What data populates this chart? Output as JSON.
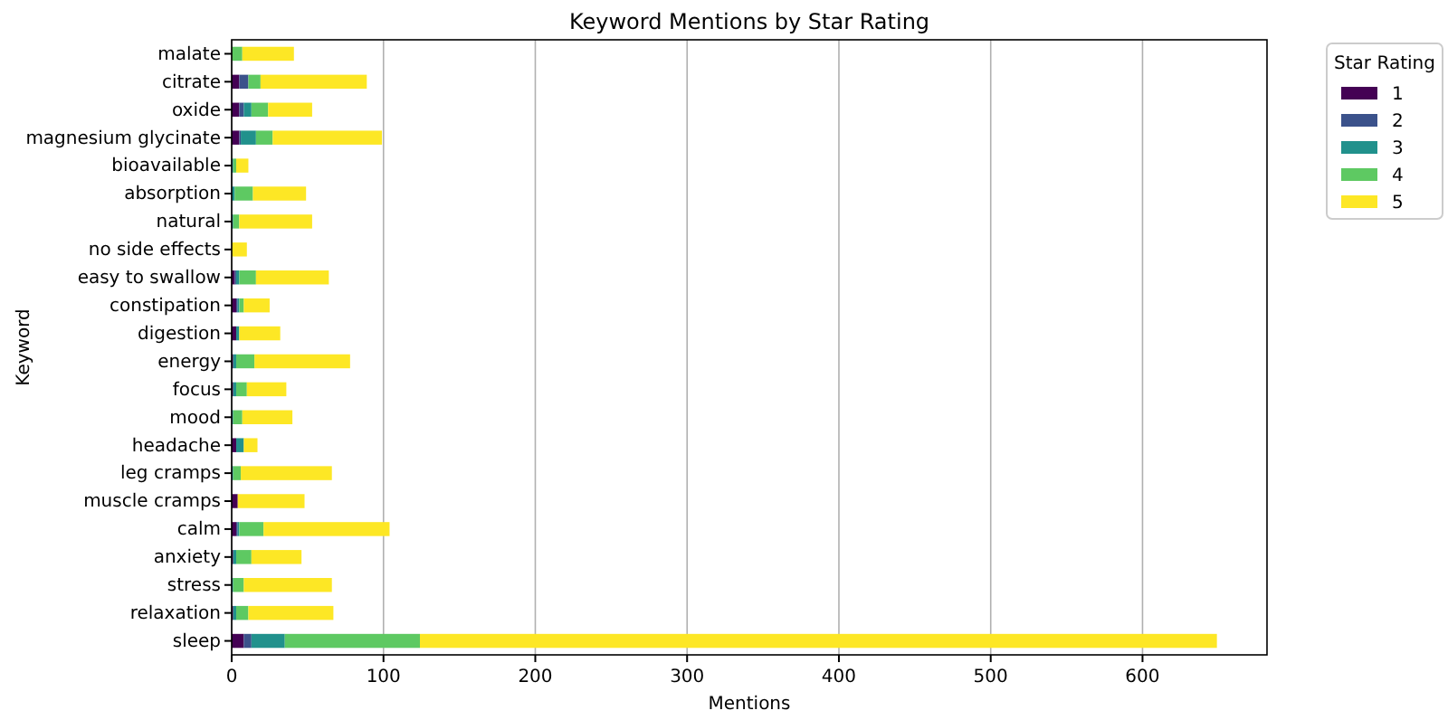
{
  "chart_data": {
    "type": "bar",
    "title": "Keyword Mentions by Star Rating",
    "xlabel": "Mentions",
    "ylabel": "Keyword",
    "legend_title": "Star Rating",
    "orientation": "horizontal",
    "stacked": true,
    "grid": "x",
    "legend": "top right",
    "categories": [
      "malate",
      "citrate",
      "oxide",
      "magnesium glycinate",
      "bioavailable",
      "absorption",
      "natural",
      "no side effects",
      "easy to swallow",
      "constipation",
      "digestion",
      "energy",
      "focus",
      "mood",
      "headache",
      "leg cramps",
      "muscle cramps",
      "calm",
      "anxiety",
      "stress",
      "relaxation",
      "sleep"
    ],
    "xlim": [
      0,
      682
    ],
    "xticks": [
      0,
      100,
      200,
      300,
      400,
      500,
      600
    ],
    "series": [
      {
        "name": "1",
        "color": "#440154",
        "values": [
          0,
          5,
          5,
          5,
          0,
          0,
          0,
          0,
          2,
          3,
          3,
          1,
          1,
          0,
          3,
          0,
          4,
          3,
          1,
          0,
          1,
          8
        ]
      },
      {
        "name": "2",
        "color": "#3b528b",
        "values": [
          0,
          6,
          3,
          1,
          0,
          0,
          0,
          0,
          1,
          1,
          0,
          0,
          0,
          0,
          0,
          0,
          0,
          1,
          0,
          0,
          0,
          5
        ]
      },
      {
        "name": "3",
        "color": "#21918c",
        "values": [
          0,
          0,
          5,
          10,
          1,
          2,
          1,
          0,
          2,
          1,
          2,
          2,
          2,
          1,
          5,
          1,
          0,
          1,
          2,
          1,
          2,
          22
        ]
      },
      {
        "name": "4",
        "color": "#5ec962",
        "values": [
          7,
          8,
          11,
          11,
          2,
          12,
          4,
          0,
          11,
          3,
          0,
          12,
          7,
          6,
          0,
          5,
          0,
          16,
          10,
          7,
          8,
          89
        ]
      },
      {
        "name": "5",
        "color": "#fde725",
        "values": [
          34,
          70,
          29,
          72,
          8,
          35,
          48,
          10,
          48,
          17,
          27,
          63,
          26,
          33,
          9,
          60,
          44,
          83,
          33,
          58,
          56,
          525
        ]
      }
    ]
  }
}
